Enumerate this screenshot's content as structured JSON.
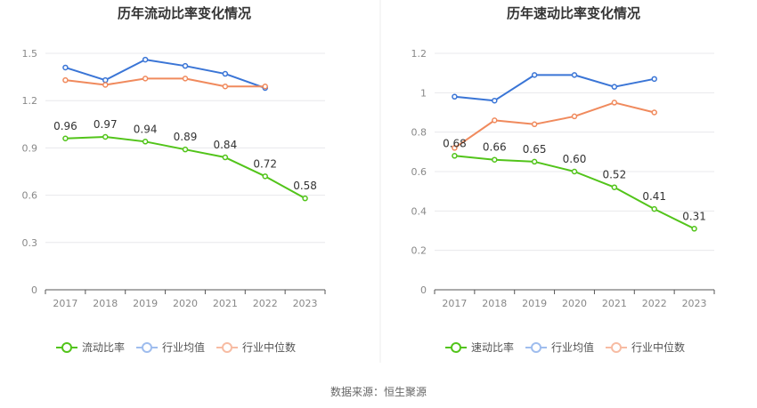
{
  "footer": {
    "source": "数据来源：恒生聚源"
  },
  "chart_data": [
    {
      "type": "line",
      "title": "历年流动比率变化情况",
      "categories": [
        "2017",
        "2018",
        "2019",
        "2020",
        "2021",
        "2022",
        "2023"
      ],
      "yticks": [
        "0",
        "0.3",
        "0.6",
        "0.9",
        "1.2",
        "1.5"
      ],
      "ylim": [
        0,
        1.5
      ],
      "series": [
        {
          "name": "流动比率",
          "color": "#52c41a",
          "values": [
            0.96,
            0.97,
            0.94,
            0.89,
            0.84,
            0.72,
            0.58
          ],
          "labels": [
            "0.96",
            "0.97",
            "0.94",
            "0.89",
            "0.84",
            "0.72",
            "0.58"
          ],
          "show_labels": true
        },
        {
          "name": "行业均值",
          "color": "#3a75d6",
          "values": [
            1.41,
            1.33,
            1.46,
            1.42,
            1.37,
            1.28,
            null
          ],
          "show_labels": false
        },
        {
          "name": "行业中位数",
          "color": "#f08a5d",
          "values": [
            1.33,
            1.3,
            1.34,
            1.34,
            1.29,
            1.29,
            null
          ],
          "show_labels": false
        }
      ]
    },
    {
      "type": "line",
      "title": "历年速动比率变化情况",
      "categories": [
        "2017",
        "2018",
        "2019",
        "2020",
        "2021",
        "2022",
        "2023"
      ],
      "yticks": [
        "0",
        "0.2",
        "0.4",
        "0.6",
        "0.8",
        "1",
        "1.2"
      ],
      "ylim": [
        0,
        1.2
      ],
      "series": [
        {
          "name": "速动比率",
          "color": "#52c41a",
          "values": [
            0.68,
            0.66,
            0.65,
            0.6,
            0.52,
            0.41,
            0.31
          ],
          "labels": [
            "0.68",
            "0.66",
            "0.65",
            "0.60",
            "0.52",
            "0.41",
            "0.31"
          ],
          "show_labels": true
        },
        {
          "name": "行业均值",
          "color": "#3a75d6",
          "values": [
            0.98,
            0.96,
            1.09,
            1.09,
            1.03,
            1.07,
            null
          ],
          "show_labels": false
        },
        {
          "name": "行业中位数",
          "color": "#f08a5d",
          "values": [
            0.72,
            0.86,
            0.84,
            0.88,
            0.95,
            0.9,
            null
          ],
          "show_labels": false
        }
      ]
    }
  ]
}
